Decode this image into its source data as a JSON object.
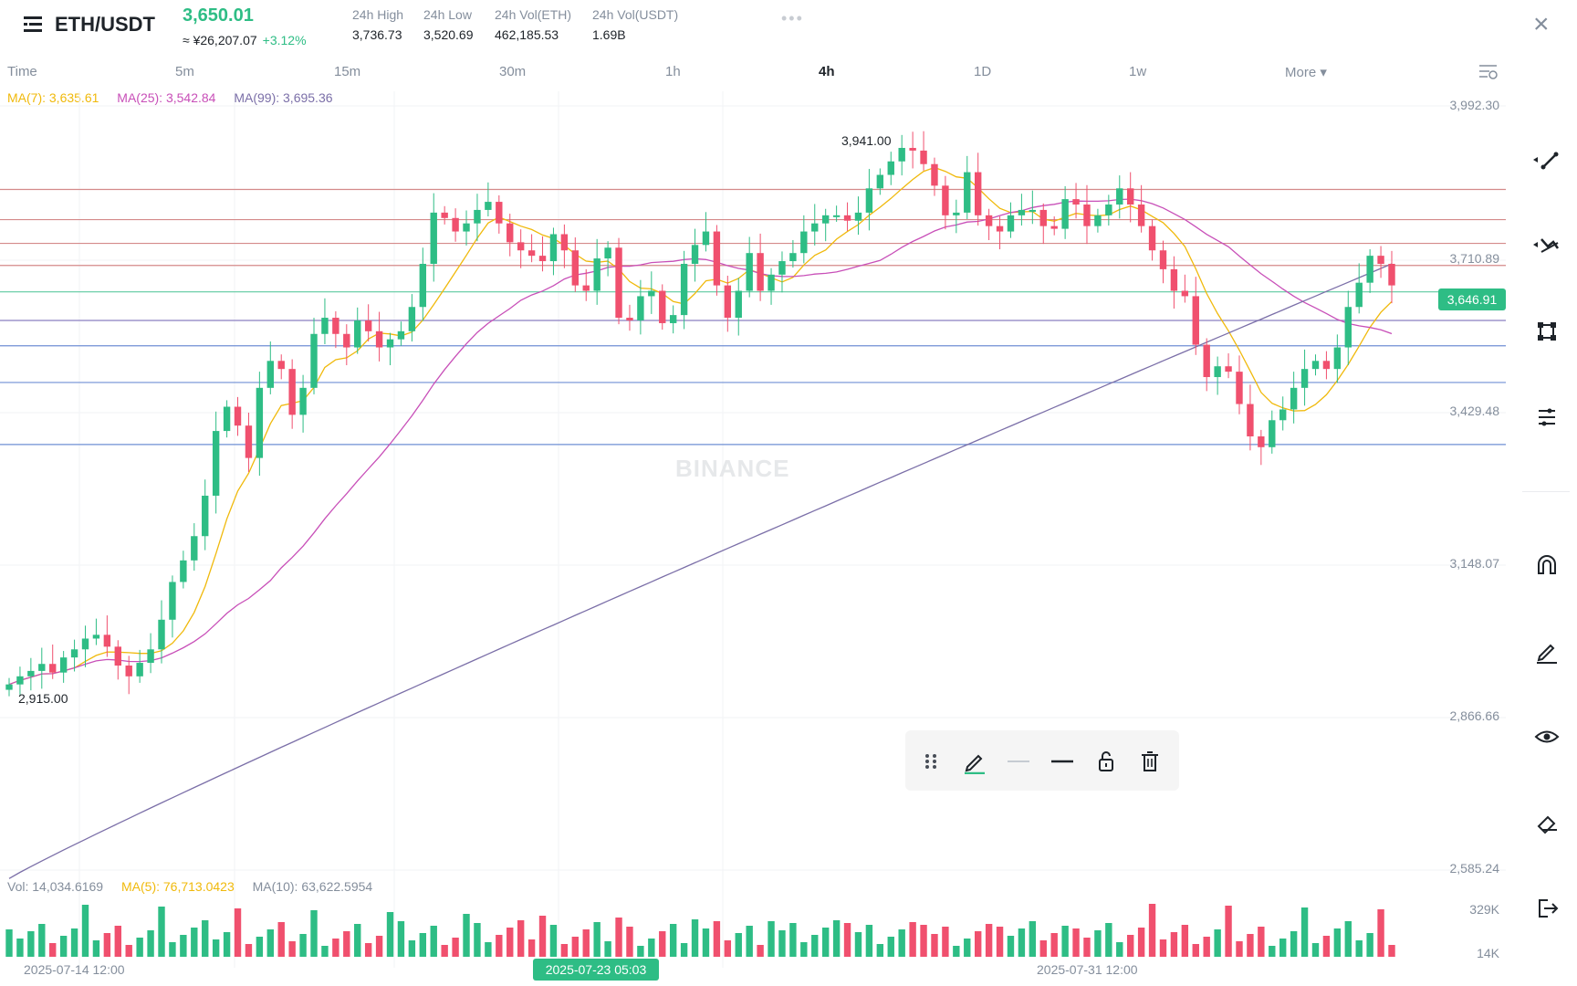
{
  "header": {
    "pair": "ETH/USDT",
    "price": "3,650.01",
    "cny": "≈ ¥26,207.07",
    "change": "+3.12%",
    "stats": [
      {
        "label": "24h High",
        "value": "3,736.73"
      },
      {
        "label": "24h Low",
        "value": "3,520.69"
      },
      {
        "label": "24h Vol(ETH)",
        "value": "462,185.53"
      },
      {
        "label": "24h Vol(USDT)",
        "value": "1.69B"
      }
    ],
    "dots": "•••",
    "close": "×"
  },
  "timeframes": {
    "time": "Time",
    "items": [
      "5m",
      "15m",
      "30m",
      "1h",
      "4h",
      "1D",
      "1w"
    ],
    "active": "4h",
    "more": "More ▾"
  },
  "ma": {
    "ma7": "MA(7): 3,635.61",
    "ma25": "MA(25): 3,542.84",
    "ma99": "MA(99): 3,695.36"
  },
  "vol_stats": {
    "vol": "Vol: 14,034.6169",
    "ma5": "MA(5): 76,713.0423",
    "ma10": "MA(10): 63,622.5954"
  },
  "y_axis": [
    "3,992.30",
    "3,710.89",
    "3,429.48",
    "3,148.07",
    "2,866.66",
    "2,585.24"
  ],
  "vol_axis": [
    "329K",
    "14K"
  ],
  "current_price_tag": "3,646.91",
  "high_marker": "3,941.00",
  "low_marker": "2,915.00",
  "watermark": "BINANCE",
  "dates": {
    "left": "2025-07-14 12:00",
    "cursor": "2025-07-23 05:03",
    "right": "2025-07-31 12:00"
  },
  "colors": {
    "up": "#2ebd85",
    "down": "#f0506e",
    "ma7": "#f0b90b",
    "ma25": "#c84fb8",
    "ma99": "#7b6fa8"
  },
  "icons": {
    "toolbar": [
      "drag-handle-icon",
      "pencil-icon",
      "thin-line-icon",
      "thick-line-icon",
      "unlock-icon",
      "trash-icon"
    ],
    "right": [
      "trend-line-icon",
      "multi-line-icon",
      "shape-icon",
      "fib-icon",
      "magnet-icon",
      "pen-icon",
      "eye-icon",
      "eraser-icon",
      "exit-icon"
    ]
  },
  "chart_data": {
    "type": "candlestick",
    "ylim": [
      2530,
      4020
    ],
    "horizontal_lines": [
      {
        "value": 3838,
        "color": "#d48a8a"
      },
      {
        "value": 3782,
        "color": "#d48a8a"
      },
      {
        "value": 3738,
        "color": "#d48a8a"
      },
      {
        "value": 3697,
        "color": "#d48a8a"
      },
      {
        "value": 3648,
        "color": "#5ec9a0"
      },
      {
        "value": 3595,
        "color": "#8a7fc0"
      },
      {
        "value": 3548,
        "color": "#6f8fd4"
      },
      {
        "value": 3480,
        "color": "#6f8fd4"
      },
      {
        "value": 3365,
        "color": "#6f8fd4"
      }
    ],
    "closes": [
      2920,
      2935,
      2945,
      2958,
      2942,
      2970,
      2985,
      3005,
      3012,
      2990,
      2955,
      2935,
      2960,
      2985,
      3040,
      3110,
      3150,
      3195,
      3270,
      3390,
      3435,
      3400,
      3340,
      3470,
      3520,
      3505,
      3420,
      3470,
      3570,
      3600,
      3570,
      3545,
      3595,
      3575,
      3545,
      3560,
      3575,
      3620,
      3700,
      3795,
      3785,
      3760,
      3775,
      3800,
      3815,
      3775,
      3740,
      3725,
      3715,
      3705,
      3755,
      3725,
      3660,
      3650,
      3710,
      3730,
      3600,
      3595,
      3640,
      3650,
      3590,
      3605,
      3700,
      3735,
      3760,
      3660,
      3600,
      3650,
      3720,
      3650,
      3680,
      3705,
      3720,
      3760,
      3775,
      3790,
      3790,
      3780,
      3795,
      3840,
      3865,
      3890,
      3915,
      3910,
      3885,
      3845,
      3790,
      3795,
      3870,
      3790,
      3770,
      3760,
      3790,
      3800,
      3800,
      3770,
      3765,
      3820,
      3810,
      3770,
      3790,
      3810,
      3840,
      3810,
      3770,
      3725,
      3690,
      3650,
      3640,
      3550,
      3490,
      3510,
      3500,
      3440,
      3380,
      3360,
      3410,
      3430,
      3470,
      3505,
      3520,
      3505,
      3545,
      3620,
      3665,
      3715,
      3700,
      3660
    ]
  }
}
